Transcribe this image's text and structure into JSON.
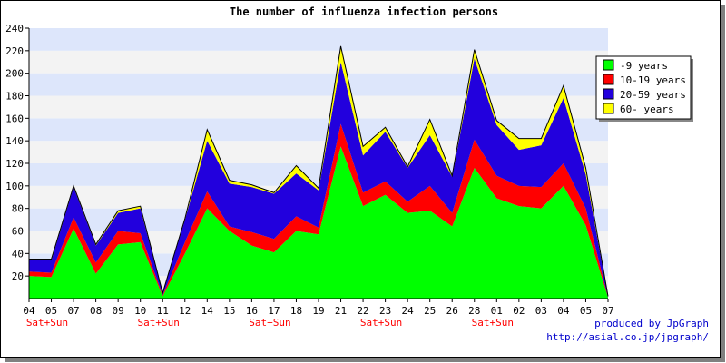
{
  "chart_data": {
    "type": "area",
    "stacked": true,
    "title": "The number of influenza infection persons",
    "xlabel": "",
    "ylabel": "",
    "ylim": [
      0,
      240
    ],
    "yticks": [
      20,
      40,
      60,
      80,
      100,
      120,
      140,
      160,
      180,
      200,
      220,
      240
    ],
    "grid": "horizontal alternating bands (light blue / light grey)",
    "legend_position": "top-right",
    "categories": [
      "04",
      "05",
      "07",
      "08",
      "09",
      "10",
      "11",
      "12",
      "14",
      "15",
      "16",
      "17",
      "18",
      "19",
      "21",
      "22",
      "23",
      "24",
      "25",
      "26",
      "28",
      "01",
      "02",
      "03",
      "04",
      "05",
      "07"
    ],
    "weekend_markers": [
      {
        "index": 0,
        "label": "Sat+Sun"
      },
      {
        "index": 5,
        "label": "Sat+Sun"
      },
      {
        "index": 10,
        "label": "Sat+Sun"
      },
      {
        "index": 15,
        "label": "Sat+Sun"
      },
      {
        "index": 20,
        "label": "Sat+Sun"
      }
    ],
    "weekend_color": "#ff0000",
    "series": [
      {
        "name": "-9 years",
        "color": "#00ff00",
        "values": [
          20,
          19,
          62,
          22,
          48,
          50,
          2,
          40,
          80,
          60,
          47,
          41,
          60,
          57,
          135,
          82,
          92,
          76,
          78,
          64,
          116,
          89,
          82,
          80,
          100,
          65,
          1
        ]
      },
      {
        "name": "10-19 years",
        "color": "#ff0000",
        "values": [
          4,
          4,
          10,
          10,
          12,
          8,
          1,
          10,
          15,
          4,
          12,
          12,
          13,
          6,
          20,
          12,
          12,
          10,
          22,
          12,
          25,
          20,
          18,
          19,
          20,
          15,
          0
        ]
      },
      {
        "name": "20-59 years",
        "color": "#2200dd",
        "values": [
          10,
          11,
          27,
          15,
          16,
          22,
          2,
          20,
          45,
          38,
          40,
          40,
          38,
          33,
          55,
          33,
          44,
          30,
          45,
          32,
          72,
          45,
          32,
          37,
          58,
          30,
          1
        ]
      },
      {
        "name": "60- years",
        "color": "#ffff00",
        "values": [
          1,
          1,
          1,
          1,
          2,
          2,
          0,
          1,
          10,
          3,
          2,
          1,
          7,
          2,
          14,
          8,
          4,
          1,
          14,
          1,
          8,
          4,
          10,
          6,
          11,
          6,
          0
        ]
      }
    ]
  },
  "credit": {
    "line1": "produced by JpGraph",
    "line2": "http://asial.co.jp/jpgraph/"
  }
}
